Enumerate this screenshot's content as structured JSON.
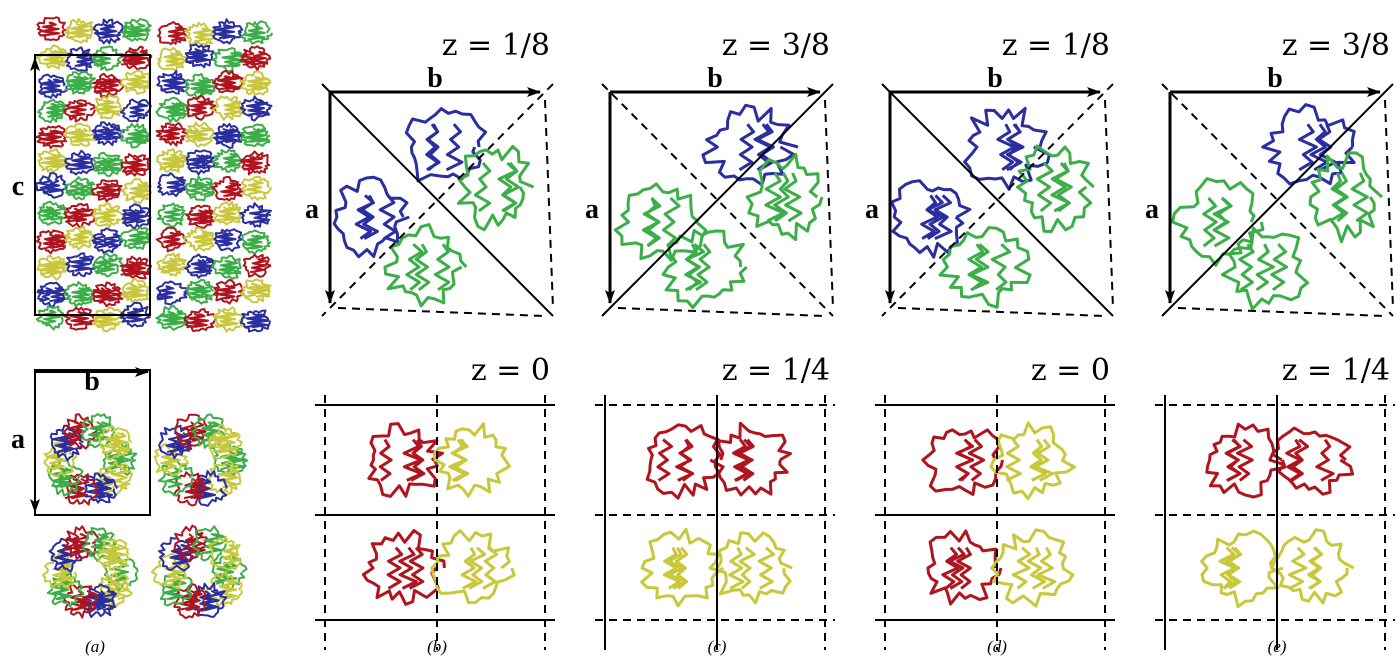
{
  "panels": [
    {
      "caption": "(a)",
      "axis_labels": {
        "c": "c",
        "b": "b",
        "a": "a"
      }
    },
    {
      "caption": "(b)",
      "top": {
        "z_label": "z = 1/8",
        "a": "a",
        "b": "b"
      },
      "bottom": {
        "z_label": "z = 0"
      }
    },
    {
      "caption": "(c)",
      "top": {
        "z_label": "z = 3/8",
        "a": "a",
        "b": "b"
      },
      "bottom": {
        "z_label": "z = 1/4"
      }
    },
    {
      "caption": "(d)",
      "top": {
        "z_label": "z = 1/8",
        "a": "a",
        "b": "b"
      },
      "bottom": {
        "z_label": "z = 0"
      }
    },
    {
      "caption": "(e)",
      "top": {
        "z_label": "z = 3/8",
        "a": "a",
        "b": "b"
      },
      "bottom": {
        "z_label": "z = 1/4"
      }
    }
  ]
}
